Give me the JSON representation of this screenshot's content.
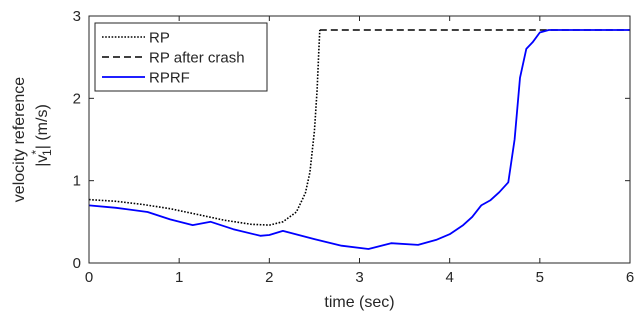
{
  "chart_data": {
    "type": "line",
    "xlabel": "time (sec)",
    "ylabel_line1": "velocity reference",
    "ylabel_line2_prefix": "|v",
    "ylabel_line2_sup": "*",
    "ylabel_line2_sub": "1",
    "ylabel_line2_suffix": "| (m/s)",
    "xlim": [
      0,
      6
    ],
    "ylim": [
      0,
      3
    ],
    "xticks": [
      0,
      1,
      2,
      3,
      4,
      5,
      6
    ],
    "yticks": [
      0,
      1,
      2,
      3
    ],
    "grid": false,
    "legend_position": "top-left",
    "series": [
      {
        "name": "RP",
        "style": "dotted",
        "color": "#000000",
        "x": [
          0,
          0.3,
          0.6,
          0.9,
          1.2,
          1.5,
          1.8,
          2.0,
          2.15,
          2.3,
          2.4,
          2.45,
          2.5,
          2.53,
          2.55,
          2.56
        ],
        "y": [
          0.77,
          0.75,
          0.71,
          0.66,
          0.59,
          0.52,
          0.47,
          0.46,
          0.5,
          0.62,
          0.85,
          1.1,
          1.6,
          2.1,
          2.6,
          2.83
        ]
      },
      {
        "name": "RP after crash",
        "style": "dashed",
        "color": "#000000",
        "x": [
          2.56,
          6.0
        ],
        "y": [
          2.83,
          2.83
        ]
      },
      {
        "name": "RPRF",
        "style": "solid",
        "color": "#0000ff",
        "x": [
          0,
          0.3,
          0.65,
          0.9,
          1.15,
          1.35,
          1.6,
          1.9,
          2.0,
          2.15,
          2.5,
          2.8,
          3.1,
          3.35,
          3.65,
          3.85,
          4.0,
          4.15,
          4.25,
          4.35,
          4.45,
          4.55,
          4.65,
          4.72,
          4.78,
          4.85,
          4.92,
          5.0,
          5.1,
          5.5,
          6.0
        ],
        "y": [
          0.7,
          0.67,
          0.62,
          0.53,
          0.46,
          0.5,
          0.41,
          0.33,
          0.34,
          0.39,
          0.29,
          0.21,
          0.17,
          0.24,
          0.22,
          0.28,
          0.35,
          0.46,
          0.56,
          0.7,
          0.76,
          0.86,
          0.98,
          1.5,
          2.25,
          2.6,
          2.68,
          2.8,
          2.83,
          2.83,
          2.83
        ]
      }
    ]
  }
}
